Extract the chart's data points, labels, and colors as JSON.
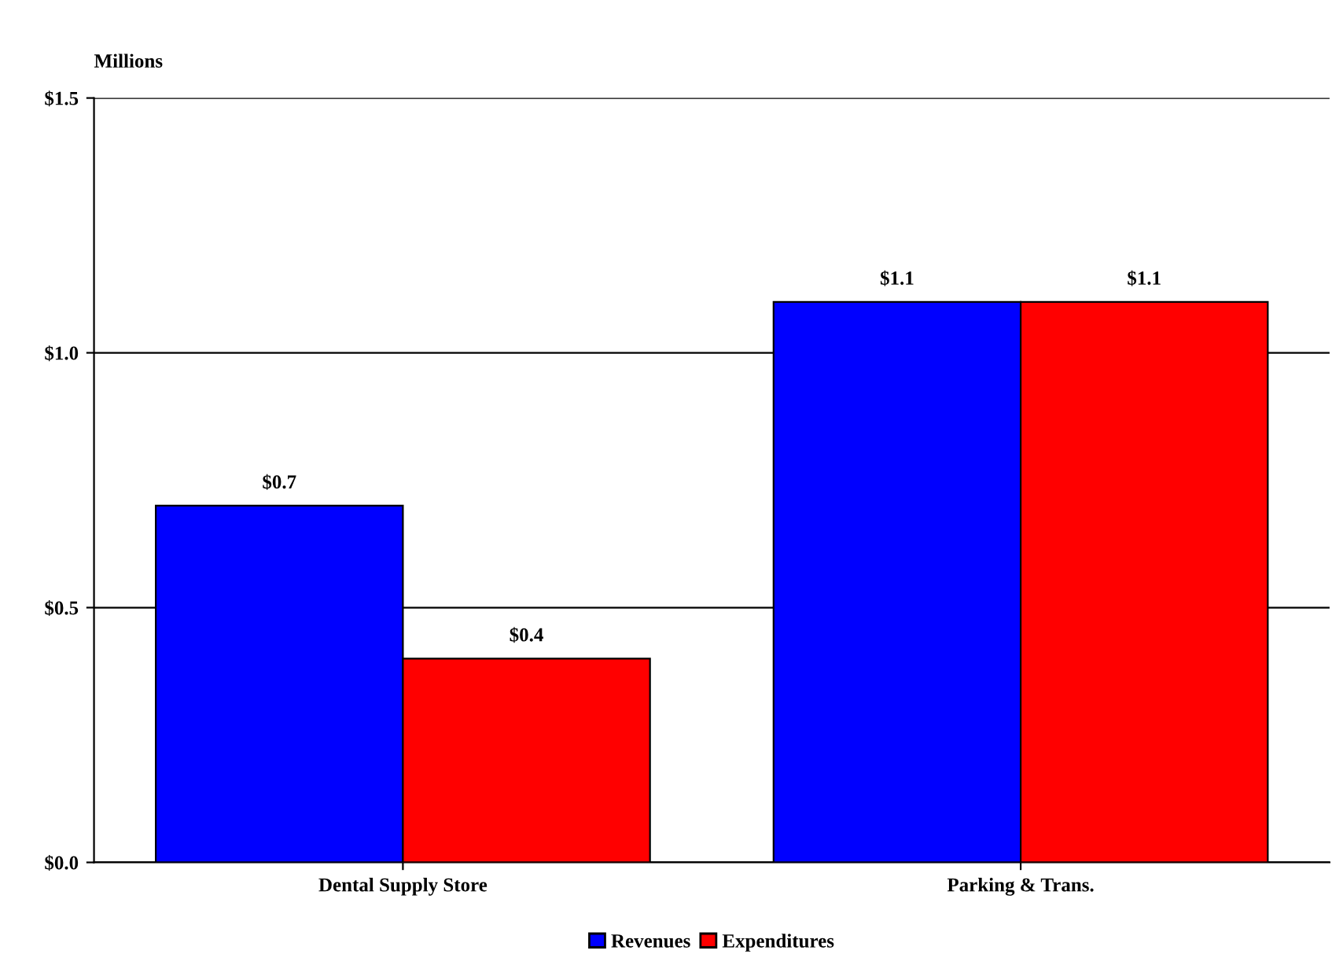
{
  "chart_data": {
    "type": "bar",
    "ylabel": "Millions",
    "categories": [
      "Dental Supply Store",
      "Parking & Trans."
    ],
    "series": [
      {
        "name": "Revenues",
        "color": "#0000ff",
        "values": [
          0.7,
          1.1
        ],
        "value_labels": [
          "$0.7",
          "$1.1"
        ]
      },
      {
        "name": "Expenditures",
        "color": "#ff0000",
        "values": [
          0.4,
          1.1
        ],
        "value_labels": [
          "$0.4",
          "$1.1"
        ]
      }
    ],
    "ylim": [
      0,
      1.5
    ],
    "yticks": [
      {
        "value": 0,
        "label": "$0.0"
      },
      {
        "value": 0.5,
        "label": "$0.5"
      },
      {
        "value": 1.0,
        "label": "$1.0"
      },
      {
        "value": 1.5,
        "label": "$1.5"
      }
    ],
    "grid": "y",
    "legend": "bottom"
  }
}
